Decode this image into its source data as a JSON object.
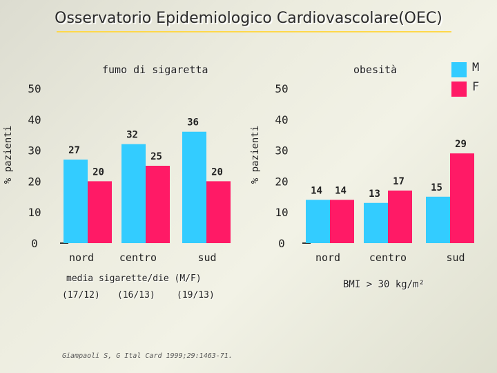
{
  "slide": {
    "title": "Osservatorio Epidemiologico Cardiovascolare(OEC)",
    "source": "Giampaoli S, G Ital Card 1999;29:1463-71."
  },
  "legend": [
    {
      "label": "M",
      "color": "#33ccff"
    },
    {
      "label": "F",
      "color": "#ff1a66"
    }
  ],
  "notes": {
    "smoke_caption": "media sigarette/die (M/F)",
    "smoke_ratios": [
      "(17/12)",
      "(16/13)",
      "(19/13)"
    ],
    "bmi_note": "BMI > 30 kg/m²"
  },
  "chart_data": [
    {
      "type": "bar",
      "title": "fumo di sigaretta",
      "ylabel": "% pazienti",
      "xlabel": "",
      "categories": [
        "nord",
        "centro",
        "sud"
      ],
      "series": [
        {
          "name": "M",
          "values": [
            27,
            32,
            36
          ]
        },
        {
          "name": "F",
          "values": [
            20,
            25,
            20
          ]
        }
      ],
      "yticks": [
        0,
        10,
        20,
        30,
        40,
        50
      ],
      "ylim": [
        0,
        50
      ]
    },
    {
      "type": "bar",
      "title": "obesità",
      "ylabel": "% pazienti",
      "xlabel": "",
      "categories": [
        "nord",
        "centro",
        "sud"
      ],
      "series": [
        {
          "name": "M",
          "values": [
            14,
            13,
            15
          ]
        },
        {
          "name": "F",
          "values": [
            14,
            17,
            29
          ]
        }
      ],
      "yticks": [
        0,
        10,
        20,
        30,
        40,
        50
      ],
      "ylim": [
        0,
        50
      ]
    }
  ]
}
